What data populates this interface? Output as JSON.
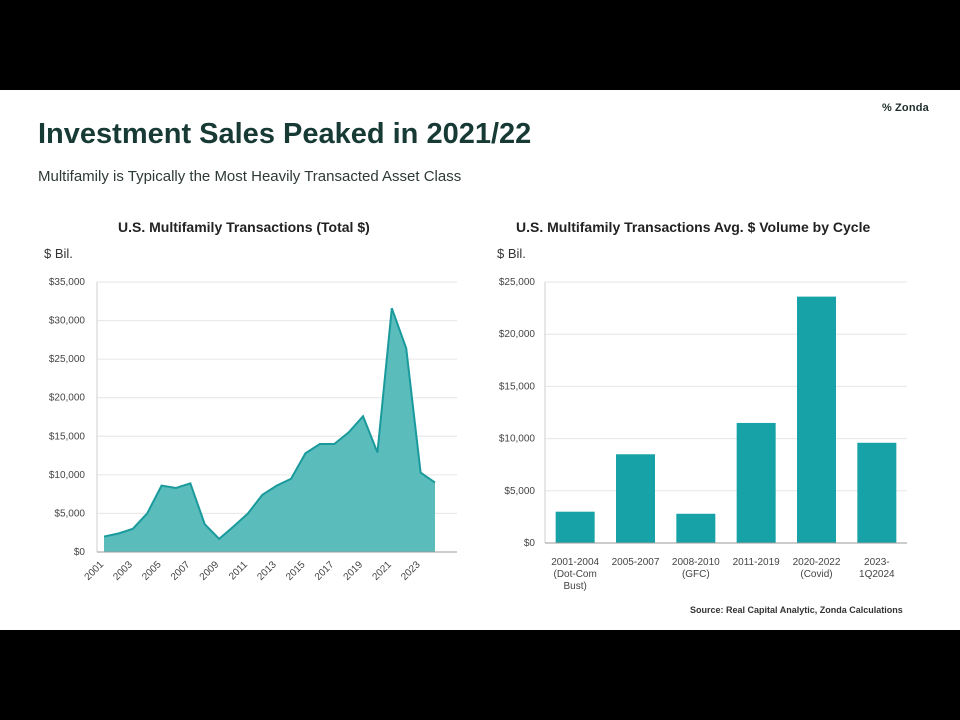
{
  "brand": {
    "mark": "%",
    "name": "Zonda"
  },
  "title": "Investment Sales Peaked in 2021/22",
  "subtitle": "Multifamily is Typically the Most Heavily Transacted Asset Class",
  "source": "Source:  Real Capital Analytic, Zonda Calculations",
  "colors": {
    "title": "#173a35",
    "area_fill": "#5bbcbc",
    "area_line": "#1a9a9c",
    "bar": "#16a2a6"
  },
  "chart_data": [
    {
      "type": "area",
      "title": "U.S. Multifamily Transactions (Total $)",
      "unit_label": "$ Bil.",
      "x": [
        2001,
        2002,
        2003,
        2004,
        2005,
        2006,
        2007,
        2008,
        2009,
        2010,
        2011,
        2012,
        2013,
        2014,
        2015,
        2016,
        2017,
        2018,
        2019,
        2020,
        2021,
        2022,
        2023,
        2024
      ],
      "y": [
        2000,
        2400,
        3000,
        5000,
        8600,
        8300,
        8900,
        3600,
        1700,
        3300,
        5000,
        7400,
        8600,
        9500,
        12800,
        14000,
        14000,
        15500,
        17600,
        12900,
        31600,
        26400,
        10300,
        9000
      ],
      "x_tick_labels": [
        "2001",
        "2003",
        "2005",
        "2007",
        "2009",
        "2011",
        "2013",
        "2015",
        "2017",
        "2019",
        "2021",
        "2023"
      ],
      "ylim": [
        0,
        35000
      ],
      "y_ticks": [
        0,
        5000,
        10000,
        15000,
        20000,
        25000,
        30000,
        35000
      ],
      "y_tick_labels": [
        "$0",
        "$5,000",
        "$10,000",
        "$15,000",
        "$20,000",
        "$25,000",
        "$30,000",
        "$35,000"
      ]
    },
    {
      "type": "bar",
      "title": "U.S. Multifamily Transactions Avg. $ Volume by Cycle",
      "unit_label": "$ Bil.",
      "categories": [
        [
          "2001-2004",
          "(Dot-Com",
          "Bust)"
        ],
        [
          "2005-2007"
        ],
        [
          "2008-2010",
          "(GFC)"
        ],
        [
          "2011-2019"
        ],
        [
          "2020-2022",
          "(Covid)"
        ],
        [
          "2023-",
          "1Q2024"
        ]
      ],
      "values": [
        3000,
        8500,
        2800,
        11500,
        23600,
        9600
      ],
      "ylim": [
        0,
        25000
      ],
      "y_ticks": [
        0,
        5000,
        10000,
        15000,
        20000,
        25000
      ],
      "y_tick_labels": [
        "$0",
        "$5,000",
        "$10,000",
        "$15,000",
        "$20,000",
        "$25,000"
      ]
    }
  ]
}
